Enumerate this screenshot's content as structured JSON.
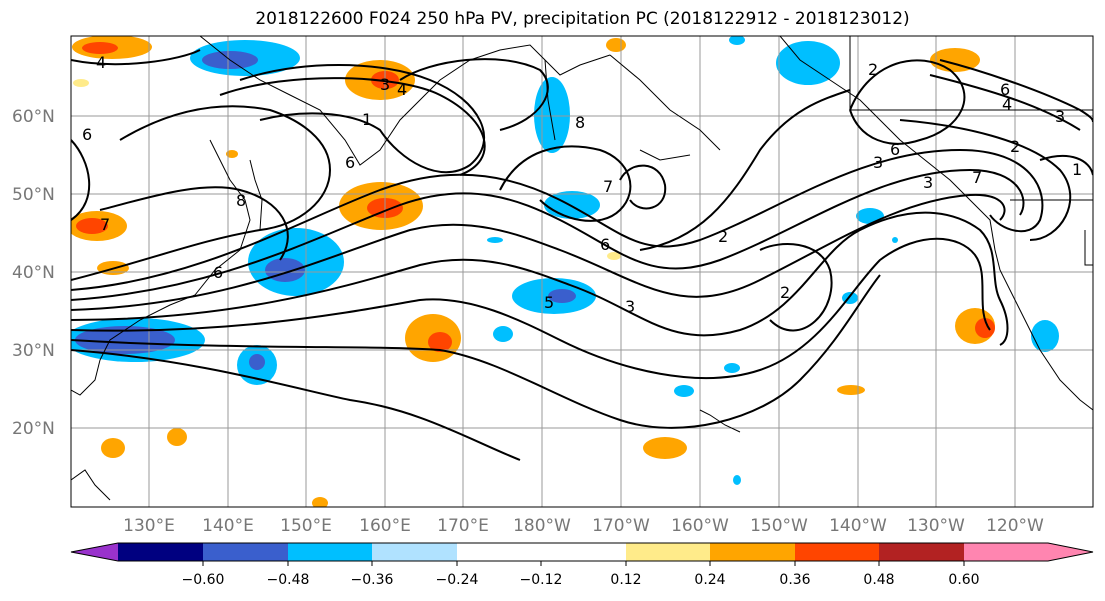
{
  "title": "2018122600 F024 250 hPa PV, precipitation PC (2018122912 - 2018123012)",
  "lat_labels": [
    {
      "text": "60°N",
      "lat": 60
    },
    {
      "text": "50°N",
      "lat": 50
    },
    {
      "text": "40°N",
      "lat": 40
    },
    {
      "text": "30°N",
      "lat": 30
    },
    {
      "text": "20°N",
      "lat": 20
    }
  ],
  "lon_labels": [
    "130°E",
    "140°E",
    "150°E",
    "160°E",
    "170°E",
    "180°W",
    "170°W",
    "160°W",
    "150°W",
    "140°W",
    "130°W",
    "120°W"
  ],
  "colorbar": {
    "colors": [
      "#9932cc",
      "#000080",
      "#3a5fcd",
      "#00bfff",
      "#b0e2ff",
      "#ffffff",
      "#ffeb8a",
      "#ffa500",
      "#ff4500",
      "#b22222",
      "#ff85b0"
    ],
    "tick_labels": [
      "−0.60",
      "−0.48",
      "−0.36",
      "−0.24",
      "−0.12",
      "0.12",
      "0.24",
      "0.36",
      "0.48",
      "0.60"
    ]
  },
  "pv_labels": [
    "4",
    "6",
    "4",
    "3",
    "1",
    "6",
    "7",
    "8",
    "6",
    "8",
    "7",
    "6",
    "2",
    "3",
    "3",
    "2",
    "3",
    "7",
    "6",
    "6",
    "4",
    "3",
    "2",
    "1",
    "2",
    "5"
  ]
}
